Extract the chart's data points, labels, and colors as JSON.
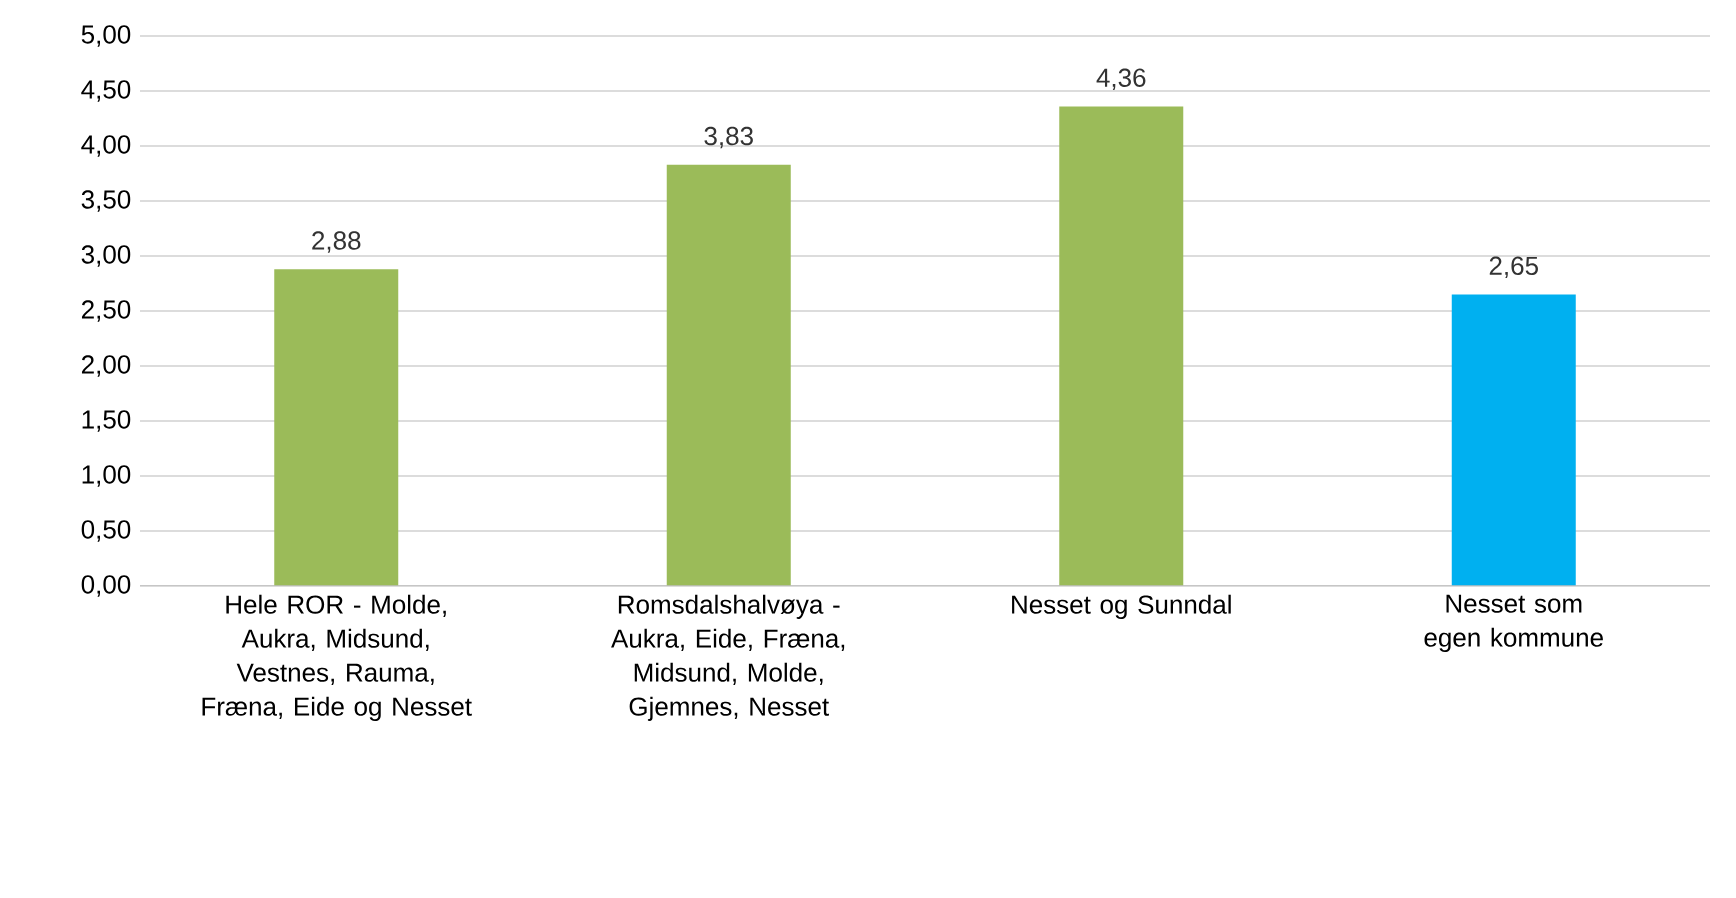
{
  "chart_data": {
    "type": "bar",
    "categories": [
      "Hele ROR - Molde, Aukra, Midsund, Vestnes, Rauma, Fræna, Eide og Nesset",
      "Romsdalshalvøya - Aukra, Eide, Fræna, Midsund, Molde, Gjemnes, Nesset",
      "Nesset og Sunndal",
      "Nesset som egen kommune"
    ],
    "values": [
      2.88,
      3.83,
      4.36,
      2.65
    ],
    "colors": [
      "#9bbb59",
      "#9bbb59",
      "#9bbb59",
      "#00b0f0"
    ],
    "value_labels": [
      "2,88",
      "3,83",
      "4,36",
      "2,65"
    ],
    "ylim": [
      0,
      5
    ],
    "yticks": [
      {
        "value": 0,
        "label": "0,00"
      },
      {
        "value": 0.5,
        "label": "0,50"
      },
      {
        "value": 1,
        "label": "1,00"
      },
      {
        "value": 1.5,
        "label": "1,50"
      },
      {
        "value": 2,
        "label": "2,00"
      },
      {
        "value": 2.5,
        "label": "2,50"
      },
      {
        "value": 3,
        "label": "3,00"
      },
      {
        "value": 3.5,
        "label": "3,50"
      },
      {
        "value": 4,
        "label": "4,00"
      },
      {
        "value": 4.5,
        "label": "4,50"
      },
      {
        "value": 5,
        "label": "5,00"
      }
    ],
    "grid": "y"
  }
}
